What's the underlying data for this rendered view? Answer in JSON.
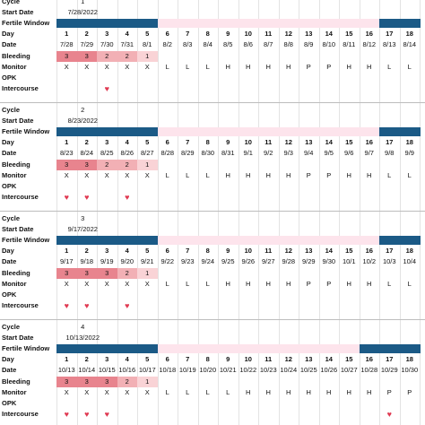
{
  "row_labels": {
    "cycle": "Cycle",
    "start_date": "Start Date",
    "fertile_window": "Fertile Window",
    "day": "Day",
    "date": "Date",
    "bleeding": "Bleeding",
    "monitor": "Monitor",
    "opk": "OPK",
    "intercourse": "Intercourse"
  },
  "days": [
    "1",
    "2",
    "3",
    "4",
    "5",
    "6",
    "7",
    "8",
    "9",
    "10",
    "11",
    "12",
    "13",
    "14",
    "15",
    "16",
    "17",
    "18"
  ],
  "colors": {
    "fertile_blue": "#1b5a86",
    "fertile_pink": "#fde4ec",
    "bleed_heavy": "#e8848e",
    "bleed_medium": "#f2b0b5",
    "bleed_light": "#f9d3d6",
    "heart": "#e03a52"
  },
  "icons": {
    "intercourse_marker": "heart-icon"
  },
  "cycles": [
    {
      "cycle": "1",
      "start_date": "7/28/2022",
      "fertile_window": {
        "blue_days": [
          1,
          2,
          3,
          4,
          5,
          17,
          18
        ],
        "pink_days": [
          6,
          7,
          8,
          9,
          10,
          11,
          12,
          13,
          14,
          15,
          16
        ]
      },
      "dates": [
        "7/28",
        "7/29",
        "7/30",
        "7/31",
        "8/1",
        "8/2",
        "8/3",
        "8/4",
        "8/5",
        "8/6",
        "8/7",
        "8/8",
        "8/9",
        "8/10",
        "8/11",
        "8/12",
        "8/13",
        "8/14"
      ],
      "bleeding": [
        "3",
        "3",
        "2",
        "2",
        "1",
        "",
        "",
        "",
        "",
        "",
        "",
        "",
        "",
        "",
        "",
        "",
        "",
        ""
      ],
      "bleeding_levels": [
        "h",
        "h",
        "m",
        "m",
        "l",
        "",
        "",
        "",
        "",
        "",
        "",
        "",
        "",
        "",
        "",
        "",
        "",
        ""
      ],
      "monitor": [
        "X",
        "X",
        "X",
        "X",
        "X",
        "L",
        "L",
        "L",
        "H",
        "H",
        "H",
        "H",
        "P",
        "P",
        "H",
        "H",
        "L",
        "L"
      ],
      "opk": [
        "",
        "",
        "",
        "",
        "",
        "",
        "",
        "",
        "",
        "",
        "",
        "",
        "",
        "",
        "",
        "",
        "",
        ""
      ],
      "intercourse_days": [
        3
      ]
    },
    {
      "cycle": "2",
      "start_date": "8/23/2022",
      "fertile_window": {
        "blue_days": [
          1,
          2,
          3,
          4,
          5,
          17,
          18
        ],
        "pink_days": [
          6,
          7,
          8,
          9,
          10,
          11,
          12,
          13,
          14,
          15,
          16
        ]
      },
      "dates": [
        "8/23",
        "8/24",
        "8/25",
        "8/26",
        "8/27",
        "8/28",
        "8/29",
        "8/30",
        "8/31",
        "9/1",
        "9/2",
        "9/3",
        "9/4",
        "9/5",
        "9/6",
        "9/7",
        "9/8",
        "9/9"
      ],
      "bleeding": [
        "3",
        "3",
        "2",
        "2",
        "1",
        "",
        "",
        "",
        "",
        "",
        "",
        "",
        "",
        "",
        "",
        "",
        "",
        ""
      ],
      "bleeding_levels": [
        "h",
        "h",
        "m",
        "m",
        "l",
        "",
        "",
        "",
        "",
        "",
        "",
        "",
        "",
        "",
        "",
        "",
        "",
        ""
      ],
      "monitor": [
        "X",
        "X",
        "X",
        "X",
        "X",
        "L",
        "L",
        "L",
        "H",
        "H",
        "H",
        "H",
        "P",
        "P",
        "H",
        "H",
        "L",
        "L"
      ],
      "opk": [
        "",
        "",
        "",
        "",
        "",
        "",
        "",
        "",
        "",
        "",
        "",
        "",
        "",
        "",
        "",
        "",
        "",
        ""
      ],
      "intercourse_days": [
        1,
        2,
        4
      ]
    },
    {
      "cycle": "3",
      "start_date": "9/17/2022",
      "fertile_window": {
        "blue_days": [
          1,
          2,
          3,
          4,
          5,
          17,
          18
        ],
        "pink_days": [
          6,
          7,
          8,
          9,
          10,
          11,
          12,
          13,
          14,
          15,
          16
        ]
      },
      "dates": [
        "9/17",
        "9/18",
        "9/19",
        "9/20",
        "9/21",
        "9/22",
        "9/23",
        "9/24",
        "9/25",
        "9/26",
        "9/27",
        "9/28",
        "9/29",
        "9/30",
        "10/1",
        "10/2",
        "10/3",
        "10/4"
      ],
      "bleeding": [
        "3",
        "3",
        "3",
        "2",
        "1",
        "",
        "",
        "",
        "",
        "",
        "",
        "",
        "",
        "",
        "",
        "",
        "",
        ""
      ],
      "bleeding_levels": [
        "h",
        "h",
        "h",
        "m",
        "l",
        "",
        "",
        "",
        "",
        "",
        "",
        "",
        "",
        "",
        "",
        "",
        "",
        ""
      ],
      "monitor": [
        "X",
        "X",
        "X",
        "X",
        "X",
        "L",
        "L",
        "L",
        "H",
        "H",
        "H",
        "H",
        "P",
        "P",
        "H",
        "H",
        "L",
        "L"
      ],
      "opk": [
        "",
        "",
        "",
        "",
        "",
        "",
        "",
        "",
        "",
        "",
        "",
        "",
        "",
        "",
        "",
        "",
        "",
        ""
      ],
      "intercourse_days": [
        1,
        2,
        4
      ]
    },
    {
      "cycle": "4",
      "start_date": "10/13/2022",
      "fertile_window": {
        "blue_days": [
          1,
          2,
          3,
          4,
          5,
          16,
          17,
          18
        ],
        "pink_days": [
          6,
          7,
          8,
          9,
          10,
          11,
          12,
          13,
          14,
          15
        ]
      },
      "dates": [
        "10/13",
        "10/14",
        "10/15",
        "10/16",
        "10/17",
        "10/18",
        "10/19",
        "10/20",
        "10/21",
        "10/22",
        "10/23",
        "10/24",
        "10/25",
        "10/26",
        "10/27",
        "10/28",
        "10/29",
        "10/30"
      ],
      "bleeding": [
        "3",
        "3",
        "3",
        "2",
        "1",
        "",
        "",
        "",
        "",
        "",
        "",
        "",
        "",
        "",
        "",
        "",
        "",
        ""
      ],
      "bleeding_levels": [
        "h",
        "h",
        "h",
        "m",
        "l",
        "",
        "",
        "",
        "",
        "",
        "",
        "",
        "",
        "",
        "",
        "",
        "",
        ""
      ],
      "monitor": [
        "X",
        "X",
        "X",
        "X",
        "X",
        "L",
        "L",
        "L",
        "L",
        "H",
        "H",
        "H",
        "H",
        "H",
        "H",
        "H",
        "P",
        "P"
      ],
      "opk": [
        "",
        "",
        "",
        "",
        "",
        "",
        "",
        "",
        "",
        "",
        "",
        "",
        "",
        "",
        "",
        "",
        "",
        ""
      ],
      "intercourse_days": [
        1,
        2,
        3,
        17
      ]
    }
  ]
}
